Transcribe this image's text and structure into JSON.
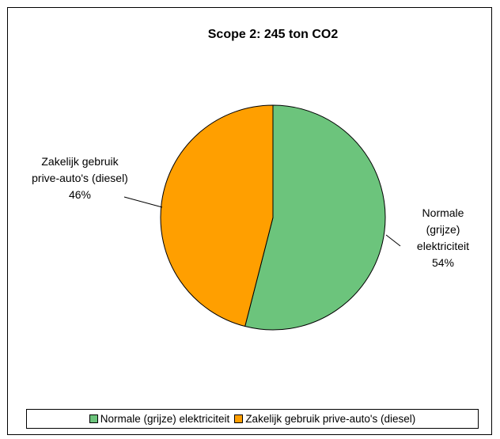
{
  "chart_data": {
    "type": "pie",
    "title": "Scope 2: 245 ton CO2",
    "categories": [
      "Normale (grijze) elektriciteit",
      "Zakelijk gebruik prive-auto's (diesel)"
    ],
    "values": [
      54,
      46
    ],
    "value_labels": [
      "54%",
      "46%"
    ],
    "colors": [
      "#6cc47c",
      "#ff9f00"
    ],
    "legend": "bottom"
  }
}
